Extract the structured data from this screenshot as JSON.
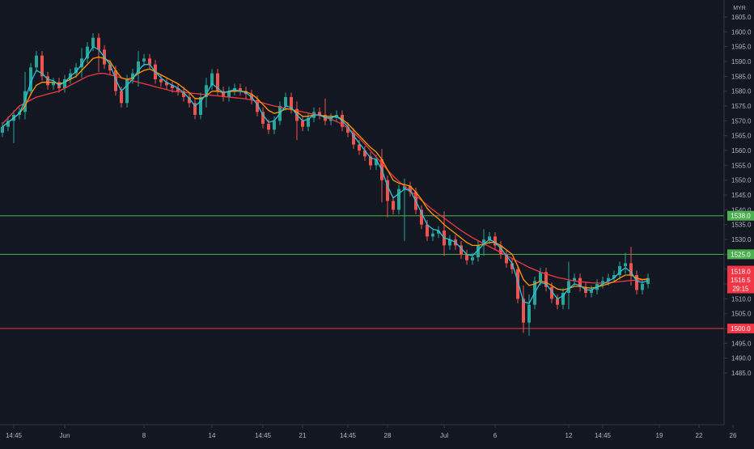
{
  "chart_data": {
    "type": "candlestick",
    "currency": "MYR",
    "ylim": [
      1482,
      1608
    ],
    "y_ticks": [
      1485.0,
      1490.0,
      1495.0,
      1500.0,
      1505.0,
      1510.0,
      1515.0,
      1520.0,
      1525.0,
      1530.0,
      1535.0,
      1540.0,
      1545.0,
      1550.0,
      1555.0,
      1560.0,
      1565.0,
      1570.0,
      1575.0,
      1580.0,
      1585.0,
      1590.0,
      1595.0,
      1600.0,
      1605.0
    ],
    "x_ticks": [
      {
        "label": "14:45",
        "bar": 2
      },
      {
        "label": "Jun",
        "bar": 11
      },
      {
        "label": "8",
        "bar": 25
      },
      {
        "label": "14",
        "bar": 37
      },
      {
        "label": "14:45",
        "bar": 46
      },
      {
        "label": "21",
        "bar": 53
      },
      {
        "label": "14:45",
        "bar": 61
      },
      {
        "label": "28",
        "bar": 68
      },
      {
        "label": "Jul",
        "bar": 78
      },
      {
        "label": "6",
        "bar": 87
      },
      {
        "label": "12",
        "bar": 100
      },
      {
        "label": "14:45",
        "bar": 106
      },
      {
        "label": "19",
        "bar": 116
      },
      {
        "label": "22",
        "bar": 123
      },
      {
        "label": "26",
        "bar": 129
      }
    ],
    "horizontal_lines": [
      {
        "price": 1538.0,
        "color": "#4caf50"
      },
      {
        "price": 1525.0,
        "color": "#4caf50"
      },
      {
        "price": 1500.0,
        "color": "#f23645"
      }
    ],
    "price_labels": [
      {
        "text": "1538.0",
        "price": 1538.0,
        "color": "#4caf50"
      },
      {
        "text": "1525.0",
        "price": 1525.0,
        "color": "#4caf50"
      },
      {
        "text": "1500.0",
        "price": 1500.0,
        "color": "#f23645"
      }
    ],
    "current_price_box": {
      "price": 1516.5,
      "lines": [
        "1518.0",
        "1516.5",
        "29:15"
      ],
      "color": "#f23645"
    },
    "series": [
      {
        "close": [
          1568,
          1570,
          1572,
          1573,
          1580,
          1588,
          1592,
          1585,
          1582,
          1583,
          1581,
          1584,
          1586,
          1588,
          1591,
          1595,
          1598,
          1594,
          1589,
          1587,
          1580,
          1576,
          1584,
          1586,
          1590,
          1591,
          1589,
          1584,
          1583,
          1582,
          1581,
          1580,
          1578,
          1576,
          1572,
          1578,
          1582,
          1586,
          1580,
          1578,
          1580,
          1581,
          1580,
          1579,
          1577,
          1573,
          1569,
          1567,
          1570,
          1575,
          1578,
          1574,
          1570,
          1568,
          1571,
          1573,
          1572,
          1570,
          1571,
          1572,
          1568,
          1566,
          1562,
          1560,
          1558,
          1555,
          1557,
          1550,
          1543,
          1540,
          1547,
          1548,
          1546,
          1540,
          1535,
          1531,
          1532,
          1533,
          1528,
          1530,
          1528,
          1525,
          1523,
          1524,
          1528,
          1530,
          1531,
          1528,
          1525,
          1522,
          1520,
          1510,
          1502,
          1508,
          1516,
          1519,
          1514,
          1510,
          1508,
          1512,
          1516,
          1517,
          1514,
          1512,
          1513,
          1515,
          1516,
          1517,
          1518,
          1521,
          1522,
          1518,
          1513,
          1515,
          1517
        ],
        "up_color": "#26a69a",
        "down_color": "#ef5350"
      },
      {
        "name": "",
        "color": "#f23645",
        "type": "ma",
        "values": [
          1569,
          1571,
          1573,
          1575,
          1576,
          1577,
          1578,
          1578.5,
          1579,
          1579.5,
          1580,
          1581,
          1582,
          1583,
          1584,
          1585,
          1585.5,
          1586,
          1586,
          1585.5,
          1585,
          1584.5,
          1584,
          1583.5,
          1583,
          1582.5,
          1582,
          1581.5,
          1581,
          1580.5,
          1580,
          1579.8,
          1579.6,
          1579.4,
          1579.2,
          1579,
          1578.8,
          1578.6,
          1578.4,
          1578.2,
          1578,
          1577.8,
          1577.6,
          1577.4,
          1577,
          1576.5,
          1576,
          1575.5,
          1575,
          1574.6,
          1574.2,
          1573.8,
          1573.4,
          1573,
          1572.6,
          1572.2,
          1571.8,
          1571.2,
          1570.5,
          1569.8,
          1568.8,
          1567.5,
          1566,
          1564.2,
          1562.2,
          1560,
          1557.8,
          1555.6,
          1553.4,
          1551.4,
          1549.6,
          1548,
          1546.4,
          1544.8,
          1543.2,
          1541.6,
          1540,
          1538.6,
          1537.2,
          1535.8,
          1534.4,
          1533,
          1531.8,
          1530.6,
          1529.6,
          1528.6,
          1527.6,
          1526.6,
          1525.6,
          1524.6,
          1523.6,
          1522.6,
          1521.6,
          1520.6,
          1519.8,
          1519,
          1518.4,
          1517.8,
          1517.2,
          1516.8,
          1516.4,
          1516,
          1515.8,
          1515.6,
          1515.4,
          1515.3,
          1515.3,
          1515.4,
          1515.6,
          1515.8,
          1516,
          1516.2,
          1516.3,
          1516.4,
          1516.5
        ]
      },
      {
        "name": "",
        "color": "#ff9800",
        "type": "ma",
        "values": [
          1568,
          1569.5,
          1571,
          1572.5,
          1575,
          1579,
          1582,
          1583,
          1583,
          1583,
          1582.5,
          1583,
          1584,
          1585,
          1587,
          1589,
          1591,
          1591.5,
          1591,
          1590,
          1587,
          1584.5,
          1584,
          1584.5,
          1586,
          1587,
          1587.5,
          1586.5,
          1585.5,
          1584.5,
          1583.5,
          1582.5,
          1581,
          1579.5,
          1577.5,
          1577.5,
          1578.5,
          1580,
          1580,
          1579.5,
          1579.8,
          1580,
          1580,
          1579.8,
          1579,
          1577.5,
          1575.5,
          1573.5,
          1572.5,
          1573,
          1574,
          1574,
          1573,
          1571.5,
          1571.5,
          1572,
          1572,
          1571.5,
          1571.5,
          1571.5,
          1570.5,
          1569,
          1567,
          1565,
          1563,
          1561,
          1559.5,
          1557,
          1553.5,
          1550,
          1549,
          1548.5,
          1548,
          1546,
          1543.5,
          1540.5,
          1538.5,
          1537,
          1535,
          1533.5,
          1532,
          1530.5,
          1529,
          1528,
          1528,
          1528.5,
          1529,
          1529,
          1528,
          1526.5,
          1525,
          1521,
          1516.5,
          1514.5,
          1515,
          1516,
          1515.5,
          1514.5,
          1513.3,
          1513,
          1513.5,
          1514.2,
          1514.2,
          1513.8,
          1513.6,
          1514,
          1514.5,
          1515.1,
          1515.8,
          1517,
          1518,
          1518,
          1517,
          1516.5,
          1516.7
        ]
      },
      {
        "name": "",
        "color": "#26c6da",
        "type": "ma",
        "values": [
          1568,
          1569.5,
          1571,
          1572.5,
          1577,
          1583,
          1587,
          1586,
          1584,
          1583.5,
          1582,
          1583,
          1585,
          1586.5,
          1589,
          1592,
          1595,
          1594,
          1591.5,
          1589,
          1584,
          1580,
          1582,
          1584,
          1587,
          1589,
          1589,
          1586.5,
          1584.5,
          1583,
          1582,
          1581,
          1579.5,
          1577.5,
          1575,
          1576.5,
          1579,
          1582.5,
          1581,
          1579.5,
          1580,
          1580.5,
          1580,
          1579.5,
          1578,
          1575.5,
          1572,
          1569.5,
          1570,
          1572.5,
          1575,
          1574.5,
          1572,
          1570,
          1570.5,
          1572,
          1572,
          1571,
          1571,
          1571.5,
          1570,
          1568,
          1565,
          1562.5,
          1560,
          1557.5,
          1557,
          1553.5,
          1548,
          1544,
          1545.5,
          1547,
          1546.5,
          1543,
          1539,
          1535,
          1533.5,
          1533,
          1530.5,
          1530,
          1529,
          1527,
          1525,
          1524.5,
          1526.5,
          1528.5,
          1530,
          1529,
          1527,
          1524.5,
          1522,
          1516,
          1509,
          1508.5,
          1512,
          1515.5,
          1515,
          1512.5,
          1510,
          1511,
          1513.5,
          1515,
          1514.5,
          1513,
          1513,
          1514,
          1515,
          1516,
          1517,
          1519,
          1520.5,
          1519,
          1516,
          1515.5,
          1516.2
        ]
      }
    ]
  }
}
